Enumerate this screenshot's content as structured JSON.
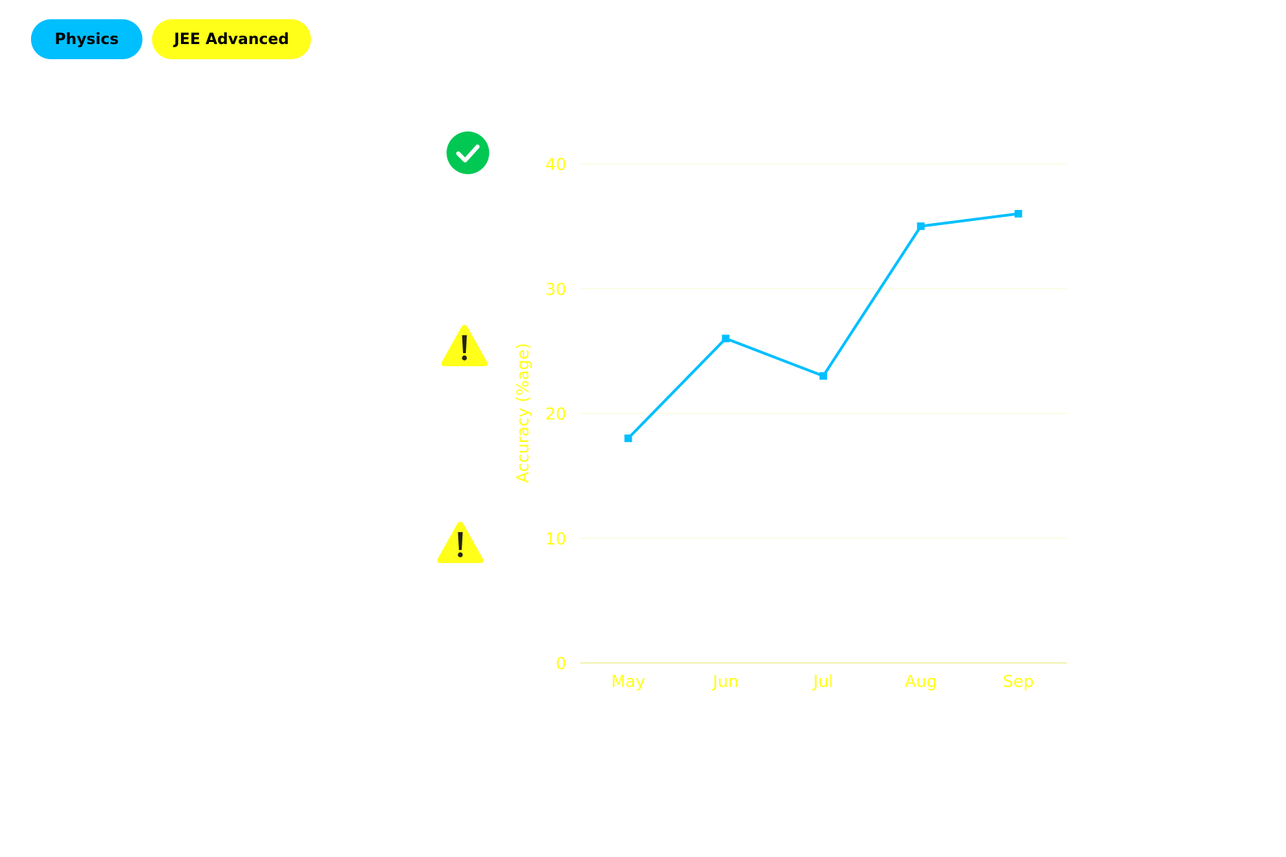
{
  "tags": {
    "subject": {
      "label": "Physics",
      "color": "#00bfff"
    },
    "exam": {
      "label": "JEE Advanced",
      "color": "#ffff1a"
    }
  },
  "status_icons": [
    {
      "name": "check-circle-icon",
      "color": "#00c853"
    },
    {
      "name": "warning-triangle-icon",
      "color": "#ffff1a"
    },
    {
      "name": "warning-triangle-icon",
      "color": "#ffff1a"
    }
  ],
  "colors": {
    "axis_text": "#ffff1a",
    "grid": "#fbfbe0",
    "series": "#00bfff"
  },
  "chart_data": {
    "type": "line",
    "categories": [
      "May",
      "Jun",
      "Jul",
      "Aug",
      "Sep"
    ],
    "series": [
      {
        "values": [
          18,
          26,
          23,
          35,
          36
        ]
      }
    ],
    "title": "",
    "xlabel": "",
    "ylabel": "Accuracy (%age)",
    "ylim": [
      0,
      40
    ],
    "yticks": [
      0,
      10,
      20,
      30,
      40
    ],
    "grid": true,
    "legend": "none"
  }
}
